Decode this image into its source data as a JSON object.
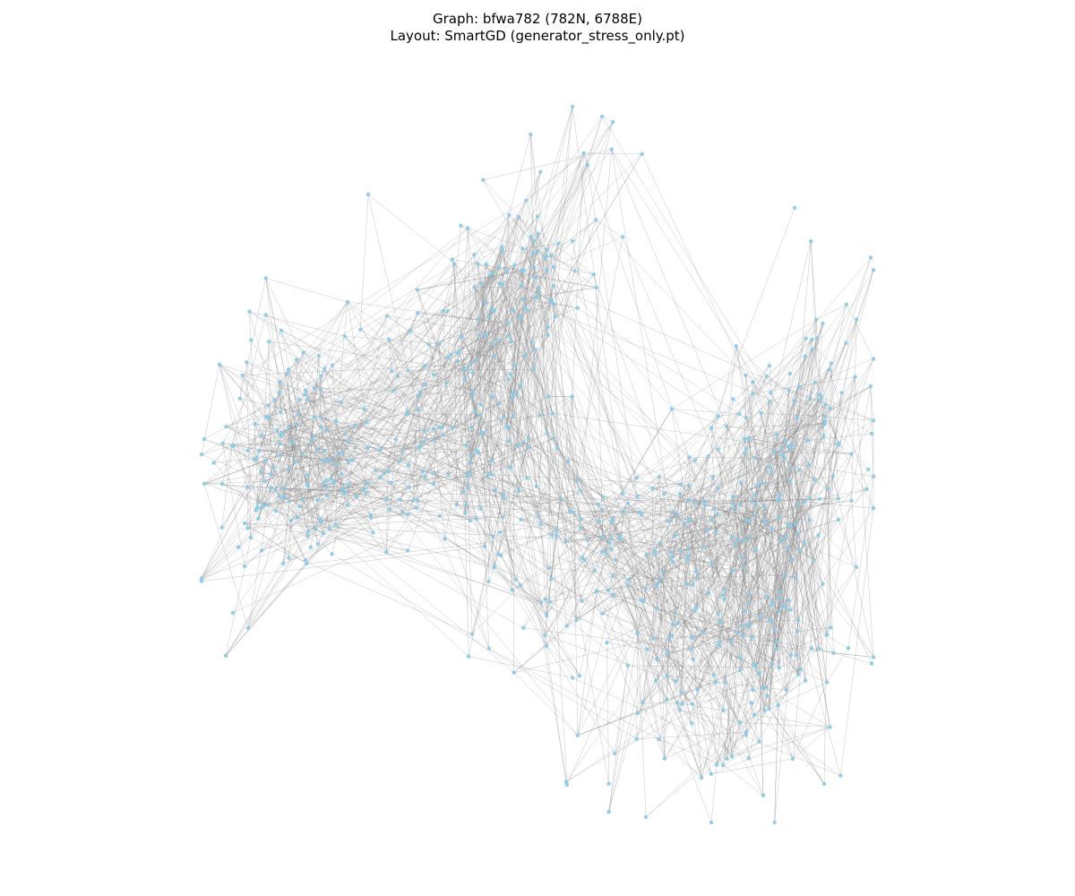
{
  "title": {
    "line1": "Graph: bfwa782 (782N, 6788E)",
    "line2": "Layout: SmartGD (generator_stress_only.pt)"
  },
  "graph": {
    "name": "bfwa782",
    "node_count": 782,
    "edge_count": 6788,
    "layout": "SmartGD",
    "model_file": "generator_stress_only.pt",
    "node_color": "#8ecae6",
    "edge_color": "#808080",
    "background_color": "#ffffff",
    "axes_visible": false
  }
}
